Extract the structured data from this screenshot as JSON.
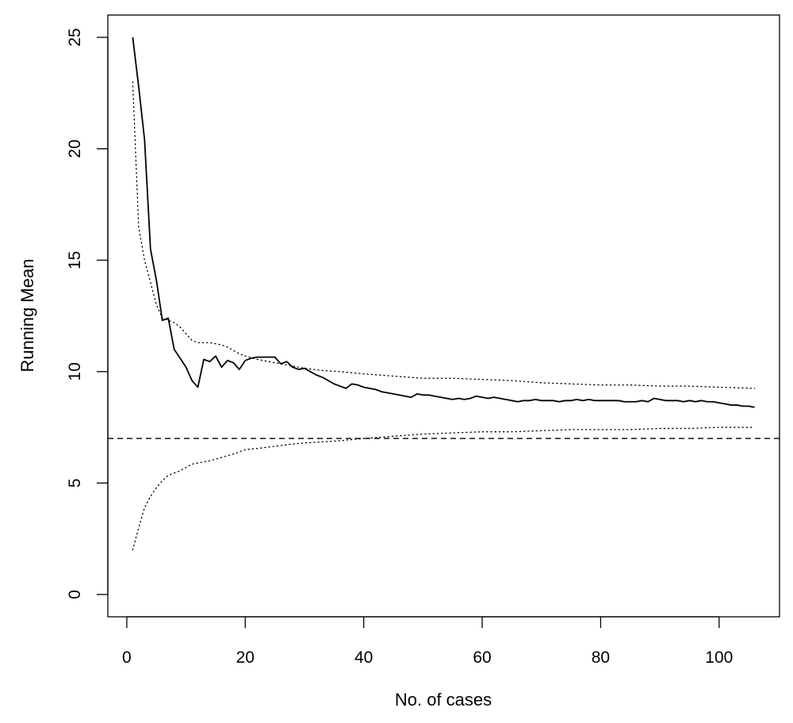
{
  "chart_data": {
    "type": "line",
    "xlabel": "No. of cases",
    "ylabel": "Running Mean",
    "xlim": [
      -3.2,
      110.2
    ],
    "ylim": [
      -1,
      26
    ],
    "x_ticks": [
      0,
      20,
      40,
      60,
      80,
      100
    ],
    "y_ticks": [
      0,
      5,
      10,
      15,
      20,
      25
    ],
    "grid": false,
    "legend": "none",
    "reference_line": {
      "y": 7,
      "style": "dashed"
    },
    "series": [
      {
        "style": "solid",
        "points": [
          [
            1,
            25.0
          ],
          [
            2,
            22.8
          ],
          [
            3,
            20.4
          ],
          [
            4,
            15.5
          ],
          [
            5,
            14.1
          ],
          [
            6,
            12.3
          ],
          [
            7,
            12.4
          ],
          [
            8,
            11.0
          ],
          [
            9,
            10.6
          ],
          [
            10,
            10.2
          ],
          [
            11,
            9.6
          ],
          [
            12,
            9.3
          ],
          [
            13,
            10.55
          ],
          [
            14,
            10.45
          ],
          [
            15,
            10.7
          ],
          [
            16,
            10.2
          ],
          [
            17,
            10.5
          ],
          [
            18,
            10.4
          ],
          [
            19,
            10.1
          ],
          [
            20,
            10.5
          ],
          [
            21,
            10.6
          ],
          [
            22,
            10.65
          ],
          [
            23,
            10.65
          ],
          [
            24,
            10.65
          ],
          [
            25,
            10.65
          ],
          [
            26,
            10.35
          ],
          [
            27,
            10.45
          ],
          [
            28,
            10.2
          ],
          [
            29,
            10.1
          ],
          [
            30,
            10.15
          ],
          [
            31,
            10.0
          ],
          [
            32,
            9.85
          ],
          [
            33,
            9.75
          ],
          [
            34,
            9.6
          ],
          [
            35,
            9.45
          ],
          [
            36,
            9.35
          ],
          [
            37,
            9.25
          ],
          [
            38,
            9.45
          ],
          [
            39,
            9.4
          ],
          [
            40,
            9.3
          ],
          [
            41,
            9.25
          ],
          [
            42,
            9.2
          ],
          [
            43,
            9.1
          ],
          [
            44,
            9.05
          ],
          [
            45,
            9.0
          ],
          [
            46,
            8.95
          ],
          [
            47,
            8.9
          ],
          [
            48,
            8.85
          ],
          [
            49,
            9.0
          ],
          [
            50,
            8.95
          ],
          [
            51,
            8.95
          ],
          [
            52,
            8.9
          ],
          [
            53,
            8.85
          ],
          [
            54,
            8.8
          ],
          [
            55,
            8.75
          ],
          [
            56,
            8.8
          ],
          [
            57,
            8.75
          ],
          [
            58,
            8.8
          ],
          [
            59,
            8.9
          ],
          [
            60,
            8.85
          ],
          [
            61,
            8.8
          ],
          [
            62,
            8.85
          ],
          [
            63,
            8.8
          ],
          [
            64,
            8.75
          ],
          [
            65,
            8.7
          ],
          [
            66,
            8.65
          ],
          [
            67,
            8.7
          ],
          [
            68,
            8.7
          ],
          [
            69,
            8.75
          ],
          [
            70,
            8.7
          ],
          [
            71,
            8.7
          ],
          [
            72,
            8.7
          ],
          [
            73,
            8.65
          ],
          [
            74,
            8.7
          ],
          [
            75,
            8.7
          ],
          [
            76,
            8.75
          ],
          [
            77,
            8.7
          ],
          [
            78,
            8.75
          ],
          [
            79,
            8.7
          ],
          [
            80,
            8.7
          ],
          [
            81,
            8.7
          ],
          [
            82,
            8.7
          ],
          [
            83,
            8.7
          ],
          [
            84,
            8.65
          ],
          [
            85,
            8.65
          ],
          [
            86,
            8.65
          ],
          [
            87,
            8.7
          ],
          [
            88,
            8.65
          ],
          [
            89,
            8.8
          ],
          [
            90,
            8.75
          ],
          [
            91,
            8.7
          ],
          [
            92,
            8.7
          ],
          [
            93,
            8.7
          ],
          [
            94,
            8.65
          ],
          [
            95,
            8.7
          ],
          [
            96,
            8.65
          ],
          [
            97,
            8.7
          ],
          [
            98,
            8.65
          ],
          [
            99,
            8.65
          ],
          [
            100,
            8.6
          ],
          [
            101,
            8.55
          ],
          [
            102,
            8.5
          ],
          [
            103,
            8.5
          ],
          [
            104,
            8.45
          ],
          [
            105,
            8.45
          ],
          [
            106,
            8.4
          ]
        ]
      },
      {
        "style": "dotted",
        "points": [
          [
            1,
            23.0
          ],
          [
            2,
            16.5
          ],
          [
            3,
            15.0
          ],
          [
            4,
            14.0
          ],
          [
            5,
            13.0
          ],
          [
            6,
            12.4
          ],
          [
            7,
            12.3
          ],
          [
            8,
            12.2
          ],
          [
            9,
            12.0
          ],
          [
            10,
            11.7
          ],
          [
            11,
            11.4
          ],
          [
            12,
            11.3
          ],
          [
            13,
            11.3
          ],
          [
            14,
            11.3
          ],
          [
            15,
            11.25
          ],
          [
            16,
            11.2
          ],
          [
            17,
            11.1
          ],
          [
            18,
            10.95
          ],
          [
            19,
            10.8
          ],
          [
            20,
            10.7
          ],
          [
            22,
            10.55
          ],
          [
            25,
            10.4
          ],
          [
            28,
            10.25
          ],
          [
            30,
            10.15
          ],
          [
            33,
            10.05
          ],
          [
            36,
            10.0
          ],
          [
            40,
            9.9
          ],
          [
            45,
            9.8
          ],
          [
            50,
            9.7
          ],
          [
            55,
            9.7
          ],
          [
            60,
            9.65
          ],
          [
            65,
            9.6
          ],
          [
            70,
            9.5
          ],
          [
            75,
            9.45
          ],
          [
            80,
            9.4
          ],
          [
            85,
            9.4
          ],
          [
            90,
            9.35
          ],
          [
            95,
            9.35
          ],
          [
            100,
            9.3
          ],
          [
            106,
            9.25
          ]
        ]
      },
      {
        "style": "dotted",
        "points": [
          [
            1,
            2.0
          ],
          [
            2,
            3.0
          ],
          [
            3,
            3.9
          ],
          [
            4,
            4.4
          ],
          [
            5,
            4.8
          ],
          [
            6,
            5.1
          ],
          [
            7,
            5.35
          ],
          [
            8,
            5.45
          ],
          [
            9,
            5.55
          ],
          [
            10,
            5.7
          ],
          [
            11,
            5.85
          ],
          [
            12,
            5.9
          ],
          [
            14,
            6.0
          ],
          [
            16,
            6.15
          ],
          [
            18,
            6.3
          ],
          [
            20,
            6.5
          ],
          [
            22,
            6.55
          ],
          [
            25,
            6.65
          ],
          [
            28,
            6.75
          ],
          [
            30,
            6.8
          ],
          [
            33,
            6.85
          ],
          [
            36,
            6.9
          ],
          [
            40,
            7.0
          ],
          [
            45,
            7.1
          ],
          [
            50,
            7.2
          ],
          [
            55,
            7.25
          ],
          [
            60,
            7.3
          ],
          [
            65,
            7.3
          ],
          [
            70,
            7.35
          ],
          [
            75,
            7.4
          ],
          [
            80,
            7.4
          ],
          [
            85,
            7.4
          ],
          [
            90,
            7.45
          ],
          [
            95,
            7.45
          ],
          [
            100,
            7.5
          ],
          [
            106,
            7.5
          ]
        ]
      }
    ]
  }
}
